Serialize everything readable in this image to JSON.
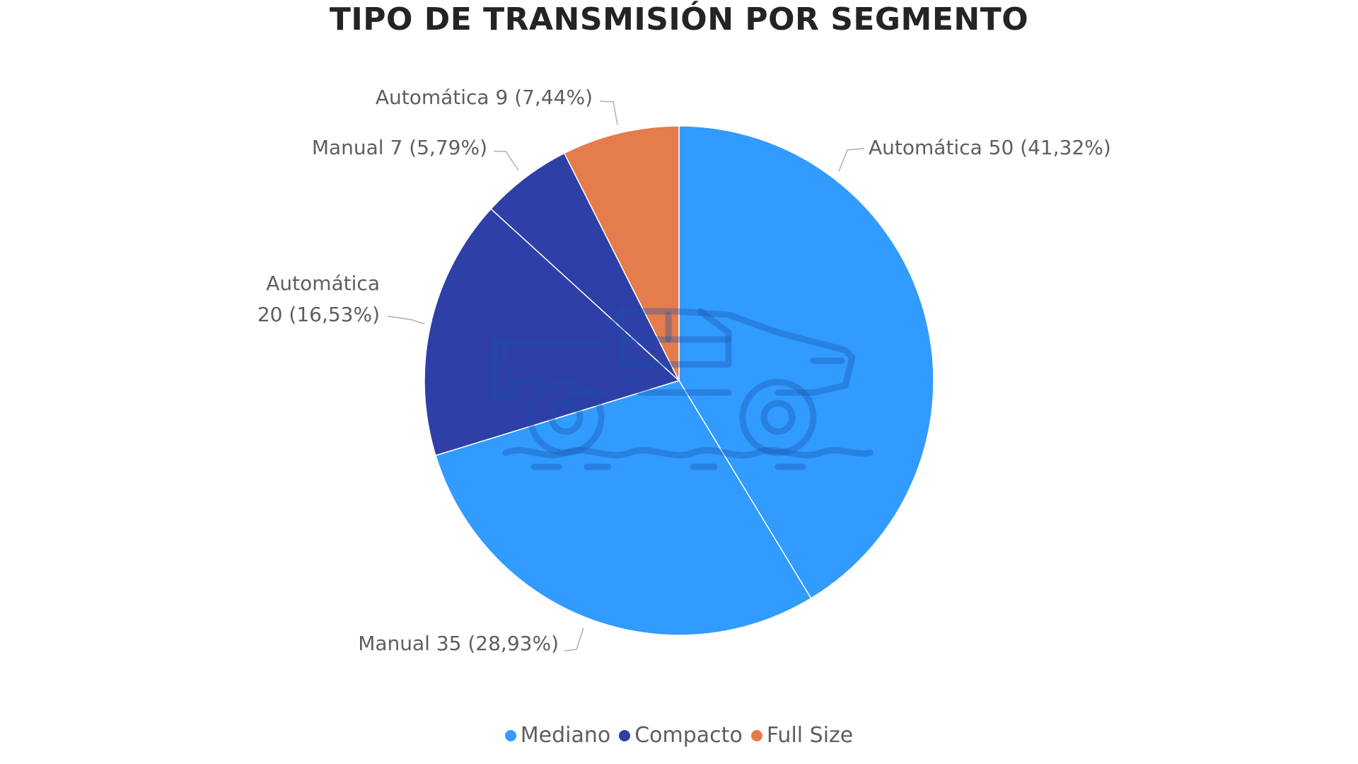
{
  "chart_data": {
    "type": "pie",
    "title": "TIPO DE TRANSMISIÓN POR SEGMENTO",
    "legend_position": "bottom-center",
    "segments": [
      {
        "name": "Mediano",
        "color": "#319BFF"
      },
      {
        "name": "Compacto",
        "color": "#2E3FA8"
      },
      {
        "name": "Full Size",
        "color": "#E57C4C"
      }
    ],
    "slices": [
      {
        "segment": "Mediano",
        "label": "Automática",
        "value": 50,
        "percent": 41.32,
        "text": "Automática 50 (41,32%)"
      },
      {
        "segment": "Mediano",
        "label": "Manual",
        "value": 35,
        "percent": 28.93,
        "text": "Manual 35 (28,93%)"
      },
      {
        "segment": "Compacto",
        "label": "Automática",
        "value": 20,
        "percent": 16.53,
        "text_lines": [
          "Automática",
          "20 (16,53%)"
        ]
      },
      {
        "segment": "Compacto",
        "label": "Manual",
        "value": 7,
        "percent": 5.79,
        "text": "Manual 7 (5,79%)"
      },
      {
        "segment": "Full Size",
        "label": "Automática",
        "value": 9,
        "percent": 7.44,
        "text": "Automática 9 (7,44%)"
      }
    ],
    "background_icon": "pickup-truck-icon"
  }
}
